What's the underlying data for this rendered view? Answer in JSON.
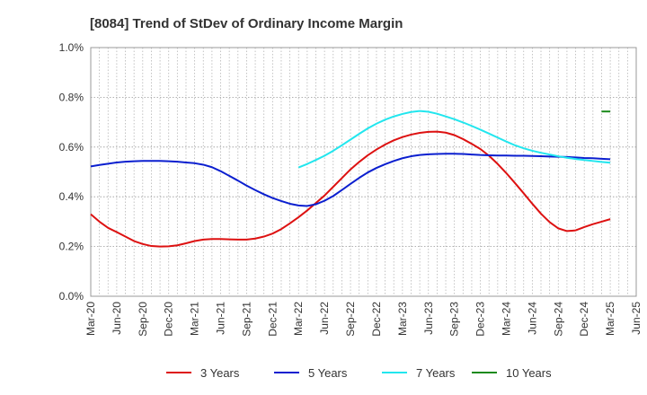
{
  "chart_data": {
    "type": "line",
    "title": "[8084]  Trend of StDev of Ordinary Income Margin",
    "xlabel": "",
    "ylabel": "",
    "x_ticks": [
      "Mar-20",
      "Jun-20",
      "Sep-20",
      "Dec-20",
      "Mar-21",
      "Jun-21",
      "Sep-21",
      "Dec-21",
      "Mar-22",
      "Jun-22",
      "Sep-22",
      "Dec-22",
      "Mar-23",
      "Jun-23",
      "Sep-23",
      "Dec-23",
      "Mar-24",
      "Jun-24",
      "Sep-24",
      "Dec-24",
      "Mar-25",
      "Jun-25"
    ],
    "y_ticks": [
      "0.0%",
      "0.2%",
      "0.4%",
      "0.6%",
      "0.8%",
      "1.0%"
    ],
    "y_tick_values": [
      0,
      0.2,
      0.4,
      0.6,
      0.8,
      1.0
    ],
    "ylim": [
      0,
      1.0
    ],
    "y_unit": "%",
    "grid": true,
    "legend_position": "bottom",
    "series": [
      {
        "name": "3 Years",
        "color": "#dd1111",
        "points": [
          [
            "Mar-20",
            0.33
          ],
          [
            "Apr-20",
            0.3
          ],
          [
            "May-20",
            0.275
          ],
          [
            "Jun-20",
            0.258
          ],
          [
            "Jul-20",
            0.24
          ],
          [
            "Aug-20",
            0.222
          ],
          [
            "Sep-20",
            0.21
          ],
          [
            "Oct-20",
            0.202
          ],
          [
            "Nov-20",
            0.2
          ],
          [
            "Dec-20",
            0.201
          ],
          [
            "Jan-21",
            0.205
          ],
          [
            "Feb-21",
            0.213
          ],
          [
            "Mar-21",
            0.222
          ],
          [
            "Apr-21",
            0.228
          ],
          [
            "May-21",
            0.23
          ],
          [
            "Jun-21",
            0.23
          ],
          [
            "Jul-21",
            0.229
          ],
          [
            "Aug-21",
            0.228
          ],
          [
            "Sep-21",
            0.228
          ],
          [
            "Oct-21",
            0.232
          ],
          [
            "Nov-21",
            0.24
          ],
          [
            "Dec-21",
            0.252
          ],
          [
            "Jan-22",
            0.27
          ],
          [
            "Feb-22",
            0.293
          ],
          [
            "Mar-22",
            0.318
          ],
          [
            "Apr-22",
            0.345
          ],
          [
            "May-22",
            0.375
          ],
          [
            "Jun-22",
            0.405
          ],
          [
            "Jul-22",
            0.44
          ],
          [
            "Aug-22",
            0.475
          ],
          [
            "Sep-22",
            0.51
          ],
          [
            "Oct-22",
            0.54
          ],
          [
            "Nov-22",
            0.567
          ],
          [
            "Dec-22",
            0.59
          ],
          [
            "Jan-23",
            0.61
          ],
          [
            "Feb-23",
            0.627
          ],
          [
            "Mar-23",
            0.64
          ],
          [
            "Apr-23",
            0.65
          ],
          [
            "May-23",
            0.657
          ],
          [
            "Jun-23",
            0.661
          ],
          [
            "Jul-23",
            0.662
          ],
          [
            "Aug-23",
            0.658
          ],
          [
            "Sep-23",
            0.648
          ],
          [
            "Oct-23",
            0.632
          ],
          [
            "Nov-23",
            0.613
          ],
          [
            "Dec-23",
            0.592
          ],
          [
            "Jan-24",
            0.565
          ],
          [
            "Feb-24",
            0.532
          ],
          [
            "Mar-24",
            0.495
          ],
          [
            "Apr-24",
            0.455
          ],
          [
            "May-24",
            0.414
          ],
          [
            "Jun-24",
            0.372
          ],
          [
            "Jul-24",
            0.332
          ],
          [
            "Aug-24",
            0.298
          ],
          [
            "Sep-24",
            0.273
          ],
          [
            "Oct-24",
            0.262
          ],
          [
            "Nov-24",
            0.265
          ],
          [
            "Dec-24",
            0.278
          ],
          [
            "Jan-25",
            0.29
          ],
          [
            "Feb-25",
            0.3
          ],
          [
            "Mar-25",
            0.31
          ]
        ]
      },
      {
        "name": "5 Years",
        "color": "#0b1fcf",
        "points": [
          [
            "Mar-20",
            0.522
          ],
          [
            "Apr-20",
            0.528
          ],
          [
            "May-20",
            0.533
          ],
          [
            "Jun-20",
            0.538
          ],
          [
            "Jul-20",
            0.541
          ],
          [
            "Aug-20",
            0.543
          ],
          [
            "Sep-20",
            0.544
          ],
          [
            "Oct-20",
            0.544
          ],
          [
            "Nov-20",
            0.544
          ],
          [
            "Dec-20",
            0.543
          ],
          [
            "Jan-21",
            0.541
          ],
          [
            "Feb-21",
            0.538
          ],
          [
            "Mar-21",
            0.535
          ],
          [
            "Apr-21",
            0.529
          ],
          [
            "May-21",
            0.519
          ],
          [
            "Jun-21",
            0.503
          ],
          [
            "Jul-21",
            0.484
          ],
          [
            "Aug-21",
            0.465
          ],
          [
            "Sep-21",
            0.445
          ],
          [
            "Oct-21",
            0.427
          ],
          [
            "Nov-21",
            0.41
          ],
          [
            "Dec-21",
            0.395
          ],
          [
            "Jan-22",
            0.383
          ],
          [
            "Feb-22",
            0.372
          ],
          [
            "Mar-22",
            0.365
          ],
          [
            "Apr-22",
            0.363
          ],
          [
            "May-22",
            0.37
          ],
          [
            "Jun-22",
            0.384
          ],
          [
            "Jul-22",
            0.403
          ],
          [
            "Aug-22",
            0.427
          ],
          [
            "Sep-22",
            0.452
          ],
          [
            "Oct-22",
            0.476
          ],
          [
            "Nov-22",
            0.498
          ],
          [
            "Dec-22",
            0.516
          ],
          [
            "Jan-23",
            0.531
          ],
          [
            "Feb-23",
            0.544
          ],
          [
            "Mar-23",
            0.555
          ],
          [
            "Apr-23",
            0.563
          ],
          [
            "May-23",
            0.568
          ],
          [
            "Jun-23",
            0.571
          ],
          [
            "Jul-23",
            0.572
          ],
          [
            "Aug-23",
            0.573
          ],
          [
            "Sep-23",
            0.573
          ],
          [
            "Oct-23",
            0.572
          ],
          [
            "Nov-23",
            0.57
          ],
          [
            "Dec-23",
            0.568
          ],
          [
            "Jan-24",
            0.567
          ],
          [
            "Feb-24",
            0.566
          ],
          [
            "Mar-24",
            0.566
          ],
          [
            "Apr-24",
            0.565
          ],
          [
            "May-24",
            0.565
          ],
          [
            "Jun-24",
            0.564
          ],
          [
            "Jul-24",
            0.563
          ],
          [
            "Aug-24",
            0.562
          ],
          [
            "Sep-24",
            0.561
          ],
          [
            "Oct-24",
            0.56
          ],
          [
            "Nov-24",
            0.558
          ],
          [
            "Dec-24",
            0.556
          ],
          [
            "Jan-25",
            0.555
          ],
          [
            "Feb-25",
            0.553
          ],
          [
            "Mar-25",
            0.551
          ]
        ]
      },
      {
        "name": "7 Years",
        "color": "#22e6ee",
        "points": [
          [
            "Mar-22",
            0.518
          ],
          [
            "Apr-22",
            0.532
          ],
          [
            "May-22",
            0.548
          ],
          [
            "Jun-22",
            0.565
          ],
          [
            "Jul-22",
            0.585
          ],
          [
            "Aug-22",
            0.607
          ],
          [
            "Sep-22",
            0.63
          ],
          [
            "Oct-22",
            0.653
          ],
          [
            "Nov-22",
            0.675
          ],
          [
            "Dec-22",
            0.694
          ],
          [
            "Jan-23",
            0.71
          ],
          [
            "Feb-23",
            0.723
          ],
          [
            "Mar-23",
            0.733
          ],
          [
            "Apr-23",
            0.741
          ],
          [
            "May-23",
            0.745
          ],
          [
            "Jun-23",
            0.742
          ],
          [
            "Jul-23",
            0.734
          ],
          [
            "Aug-23",
            0.723
          ],
          [
            "Sep-23",
            0.712
          ],
          [
            "Oct-23",
            0.699
          ],
          [
            "Nov-23",
            0.685
          ],
          [
            "Dec-23",
            0.67
          ],
          [
            "Jan-24",
            0.654
          ],
          [
            "Feb-24",
            0.638
          ],
          [
            "Mar-24",
            0.622
          ],
          [
            "Apr-24",
            0.607
          ],
          [
            "May-24",
            0.595
          ],
          [
            "Jun-24",
            0.585
          ],
          [
            "Jul-24",
            0.577
          ],
          [
            "Aug-24",
            0.57
          ],
          [
            "Sep-24",
            0.563
          ],
          [
            "Oct-24",
            0.557
          ],
          [
            "Nov-24",
            0.552
          ],
          [
            "Dec-24",
            0.548
          ],
          [
            "Jan-25",
            0.544
          ],
          [
            "Feb-25",
            0.54
          ],
          [
            "Mar-25",
            0.537
          ]
        ]
      },
      {
        "name": "10 Years",
        "color": "#1a8a1a",
        "points": [
          [
            "Feb-25",
            0.743
          ],
          [
            "Mar-25",
            0.743
          ]
        ]
      }
    ]
  }
}
